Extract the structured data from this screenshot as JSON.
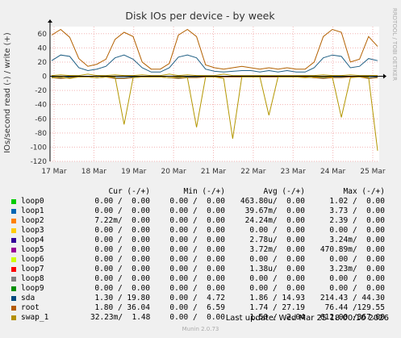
{
  "chart_data": {
    "type": "line",
    "title": "Disk IOs per device - by week",
    "ylabel": "IOs/second read (-) / write (+)",
    "side_label": "RRDTOOL / TOBI OETIKER",
    "ylim": [
      -120,
      70
    ],
    "yticks": [
      60,
      40,
      20,
      0,
      -20,
      -40,
      -60,
      -80,
      -100,
      -120
    ],
    "xticks": [
      "17 Mar",
      "18 Mar",
      "19 Mar",
      "20 Mar",
      "21 Mar",
      "22 Mar",
      "23 Mar",
      "24 Mar",
      "25 Mar"
    ],
    "grid": true,
    "series": [
      {
        "name": "loop0",
        "color": "#00cc00",
        "write": [
          0,
          0,
          0,
          0,
          0,
          0,
          0,
          0,
          0,
          0,
          0,
          0,
          0,
          0,
          0,
          0,
          0,
          0,
          0,
          0,
          0,
          0,
          0,
          0,
          0,
          0,
          0,
          0,
          0,
          0,
          0,
          0,
          0,
          0,
          0,
          0,
          0
        ],
        "read": [
          0,
          0,
          0,
          0,
          0,
          0,
          0,
          0,
          0,
          0,
          0,
          0,
          0,
          0,
          0,
          0,
          0,
          0,
          0,
          0,
          0,
          0,
          0,
          0,
          0,
          0,
          0,
          0,
          0,
          0,
          0,
          0,
          0,
          0,
          0,
          0,
          0
        ]
      },
      {
        "name": "sda",
        "color": "#1f5f84",
        "write": [
          22,
          30,
          28,
          12,
          8,
          10,
          14,
          26,
          30,
          24,
          12,
          6,
          6,
          12,
          27,
          30,
          26,
          10,
          7,
          6,
          7,
          8,
          8,
          6,
          8,
          6,
          8,
          6,
          6,
          12,
          26,
          30,
          28,
          12,
          14,
          25,
          22
        ],
        "read": [
          -1,
          -2,
          -1,
          -1,
          -1,
          -2,
          -1,
          -2,
          -2,
          -1,
          -1,
          -1,
          -1,
          -2,
          -2,
          -1,
          -1,
          -1,
          -1,
          -1,
          -1,
          -1,
          -1,
          -1,
          -1,
          -1,
          -1,
          -1,
          -1,
          -2,
          -2,
          -1,
          -1,
          -1,
          -1,
          -2,
          -1
        ]
      },
      {
        "name": "root",
        "color": "#b36000",
        "write": [
          58,
          66,
          55,
          25,
          14,
          17,
          24,
          52,
          62,
          56,
          20,
          10,
          10,
          18,
          58,
          66,
          56,
          16,
          12,
          10,
          12,
          14,
          12,
          10,
          12,
          10,
          12,
          10,
          10,
          20,
          56,
          66,
          62,
          20,
          24,
          56,
          42
        ],
        "read": [
          -2,
          -3,
          -2,
          -1,
          -1,
          -2,
          -1,
          -3,
          -3,
          -2,
          -1,
          -1,
          -1,
          -2,
          -3,
          -2,
          -2,
          -1,
          -1,
          -1,
          -1,
          -1,
          -1,
          -1,
          -1,
          -1,
          -1,
          -1,
          -1,
          -2,
          -3,
          -2,
          -2,
          -1,
          -1,
          -3,
          -2
        ]
      },
      {
        "name": "swap_1",
        "color": "#b39600",
        "write": [
          1,
          2,
          1,
          1,
          3,
          1,
          1,
          2,
          1,
          1,
          2,
          1,
          1,
          3,
          1,
          2,
          1,
          1,
          1,
          3,
          1,
          1,
          1,
          1,
          1,
          1,
          1,
          1,
          1,
          1,
          2,
          1,
          1,
          2,
          1,
          1,
          1
        ],
        "read": [
          -2,
          -1,
          -3,
          -1,
          -1,
          -2,
          -1,
          -1,
          -68,
          -2,
          -1,
          -1,
          -1,
          -2,
          -1,
          -2,
          -72,
          -1,
          -1,
          -3,
          -88,
          -1,
          -1,
          -1,
          -55,
          -1,
          -1,
          -1,
          -2,
          -1,
          -1,
          -1,
          -58,
          -2,
          -1,
          -1,
          -105
        ]
      }
    ]
  },
  "legend": {
    "headers": {
      "cur": "Cur (-/+)",
      "min": "Min (-/+)",
      "avg": "Avg (-/+)",
      "max": "Max (-/+)"
    },
    "rows": [
      {
        "name": "loop0",
        "color": "#00cc00",
        "cur": "0.00 /  0.00",
        "min": "0.00 /  0.00",
        "avg": "463.80u/  0.00",
        "max": "1.02 /  0.00"
      },
      {
        "name": "loop1",
        "color": "#0066b3",
        "cur": "0.00 /  0.00",
        "min": "0.00 /  0.00",
        "avg": "39.67m/  0.00",
        "max": "3.73 /  0.00"
      },
      {
        "name": "loop2",
        "color": "#ff8000",
        "cur": "7.22m/  0.00",
        "min": "0.00 /  0.00",
        "avg": "24.24m/  0.00",
        "max": "2.39 /  0.00"
      },
      {
        "name": "loop3",
        "color": "#ffcc00",
        "cur": "0.00 /  0.00",
        "min": "0.00 /  0.00",
        "avg": "0.00 /  0.00",
        "max": "0.00 /  0.00"
      },
      {
        "name": "loop4",
        "color": "#330099",
        "cur": "0.00 /  0.00",
        "min": "0.00 /  0.00",
        "avg": "2.78u/  0.00",
        "max": "3.24m/  0.00"
      },
      {
        "name": "loop5",
        "color": "#990099",
        "cur": "0.00 /  0.00",
        "min": "0.00 /  0.00",
        "avg": "3.72m/  0.00",
        "max": "470.89m/  0.00"
      },
      {
        "name": "loop6",
        "color": "#ccff00",
        "cur": "0.00 /  0.00",
        "min": "0.00 /  0.00",
        "avg": "0.00 /  0.00",
        "max": "0.00 /  0.00"
      },
      {
        "name": "loop7",
        "color": "#ff0000",
        "cur": "0.00 /  0.00",
        "min": "0.00 /  0.00",
        "avg": "1.38u/  0.00",
        "max": "3.23m/  0.00"
      },
      {
        "name": "loop8",
        "color": "#808080",
        "cur": "0.00 /  0.00",
        "min": "0.00 /  0.00",
        "avg": "0.00 /  0.00",
        "max": "0.00 /  0.00"
      },
      {
        "name": "loop9",
        "color": "#008f00",
        "cur": "0.00 /  0.00",
        "min": "0.00 /  0.00",
        "avg": "0.00 /  0.00",
        "max": "0.00 /  0.00"
      },
      {
        "name": "sda",
        "color": "#00487d",
        "cur": "1.30 / 19.80",
        "min": "0.00 /  4.72",
        "avg": "1.86 / 14.93",
        "max": "214.43 / 44.30"
      },
      {
        "name": "root",
        "color": "#b35a00",
        "cur": "1.80 / 36.04",
        "min": "0.00 /  6.59",
        "avg": "1.74 / 27.19",
        "max": "76.44 /129.55"
      },
      {
        "name": "swap_1",
        "color": "#b38f00",
        "cur": "32.23m/  1.48",
        "min": "0.00 /  0.00",
        "avg": "1.50 /  2.04",
        "max": "612.00 /367.00"
      }
    ]
  },
  "footer": {
    "last_update": "Last update: Wed Mar 25 18:00:10 2026",
    "version": "Munin 2.0.73"
  }
}
